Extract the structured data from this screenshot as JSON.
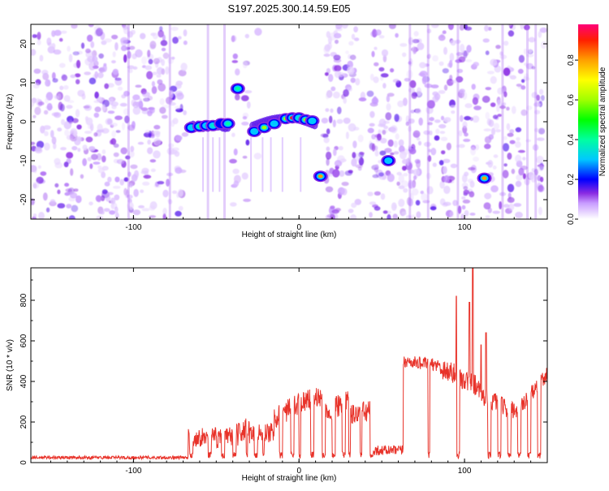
{
  "title": "S197.2025.300.14.59.E05",
  "colors": {
    "line": "#e8332a",
    "spectro_base": "#7a18ff",
    "axis": "#000000"
  },
  "chart_data": [
    {
      "type": "heatmap",
      "name": "spectrogram",
      "xlabel": "Height of straight line (km)",
      "ylabel": "Frequency (Hz)",
      "xlim": [
        -162,
        150
      ],
      "ylim": [
        -25,
        25
      ],
      "xticks": [
        -100,
        0,
        100
      ],
      "yticks": [
        -20,
        -10,
        0,
        10,
        20
      ],
      "blank_x_ranges": [
        [
          -68,
          -40
        ],
        [
          -37,
          -33
        ],
        [
          -30,
          -26
        ],
        [
          -24,
          15
        ],
        [
          39,
          43
        ],
        [
          84,
          86
        ],
        [
          108,
          113
        ],
        [
          130,
          132
        ],
        [
          148,
          150
        ]
      ],
      "streak_x": [
        -103,
        -78,
        -55,
        -45,
        67,
        78,
        96,
        123,
        138,
        143
      ],
      "hotspots": [
        {
          "x": -65,
          "y": -1.5,
          "v": 0.3
        },
        {
          "x": -60,
          "y": -1.2,
          "v": 0.4
        },
        {
          "x": -56,
          "y": -1.0,
          "v": 0.3
        },
        {
          "x": -52,
          "y": -1.0,
          "v": 0.35
        },
        {
          "x": -47,
          "y": -0.5,
          "v": 0.2
        },
        {
          "x": -43,
          "y": -0.5,
          "v": 0.4
        },
        {
          "x": -37,
          "y": 8.5,
          "v": 0.4
        },
        {
          "x": -27,
          "y": -2.5,
          "v": 0.3
        },
        {
          "x": -21,
          "y": -1.5,
          "v": 0.6
        },
        {
          "x": -15,
          "y": -0.5,
          "v": 0.3
        },
        {
          "x": -8,
          "y": 0.8,
          "v": 0.6
        },
        {
          "x": -4,
          "y": 1.0,
          "v": 0.9
        },
        {
          "x": 0,
          "y": 1.0,
          "v": 0.35
        },
        {
          "x": 4,
          "y": 0.5,
          "v": 0.6
        },
        {
          "x": 8,
          "y": 0.2,
          "v": 0.3
        },
        {
          "x": 13,
          "y": -14,
          "v": 0.8
        },
        {
          "x": 54,
          "y": -10,
          "v": 0.3
        },
        {
          "x": 112,
          "y": -14.5,
          "v": 0.8
        }
      ]
    },
    {
      "type": "colorbar",
      "label": "Normalized spectral amplitude",
      "range": [
        0,
        0.98
      ],
      "ticks": [
        "0.0",
        "0.2",
        "0.4",
        "0.6",
        "0.8"
      ],
      "tick_values": [
        0,
        0.2,
        0.4,
        0.6,
        0.8
      ],
      "stops": [
        {
          "v": 0.0,
          "c": "#ffffff"
        },
        {
          "v": 0.08,
          "c": "#c89cff"
        },
        {
          "v": 0.13,
          "c": "#8a2be2"
        },
        {
          "v": 0.2,
          "c": "#0000ff"
        },
        {
          "v": 0.3,
          "c": "#00c8ff"
        },
        {
          "v": 0.4,
          "c": "#00ffa0"
        },
        {
          "v": 0.5,
          "c": "#00ff00"
        },
        {
          "v": 0.6,
          "c": "#a0ff00"
        },
        {
          "v": 0.7,
          "c": "#ffff00"
        },
        {
          "v": 0.8,
          "c": "#ffa000"
        },
        {
          "v": 0.9,
          "c": "#ff2000"
        },
        {
          "v": 0.98,
          "c": "#ff0078"
        }
      ]
    },
    {
      "type": "line",
      "name": "snr",
      "xlabel": "Height of straight line (km)",
      "ylabel": "SNR (10 * v/v)",
      "xlim": [
        -162,
        150
      ],
      "ylim": [
        0,
        960
      ],
      "xticks": [
        -100,
        0,
        100
      ],
      "yticks": [
        0,
        200,
        400,
        600,
        800
      ],
      "series": [
        {
          "name": "SNR",
          "segments": [
            {
              "x": [
                -162,
                -67
              ],
              "y": [
                25,
                25
              ],
              "noise": 8
            },
            {
              "x": [
                -67,
                -50
              ],
              "y": [
                120,
                130
              ],
              "noise": 45
            },
            {
              "x": [
                -50,
                -40
              ],
              "y": [
                110,
                130
              ],
              "noise": 50
            },
            {
              "x": [
                -40,
                -30
              ],
              "y": [
                120,
                180
              ],
              "noise": 55
            },
            {
              "x": [
                -30,
                -15
              ],
              "y": [
                140,
                150
              ],
              "noise": 50
            },
            {
              "x": [
                -15,
                0
              ],
              "y": [
                220,
                290
              ],
              "noise": 55
            },
            {
              "x": [
                0,
                15
              ],
              "y": [
                300,
                330
              ],
              "noise": 55
            },
            {
              "x": [
                15,
                30
              ],
              "y": [
                250,
                300
              ],
              "noise": 55
            },
            {
              "x": [
                30,
                45
              ],
              "y": [
                230,
                260
              ],
              "noise": 55
            },
            {
              "x": [
                45,
                63
              ],
              "y": [
                60,
                60
              ],
              "noise": 25
            },
            {
              "x": [
                63,
                85
              ],
              "y": [
                500,
                480
              ],
              "noise": 30
            },
            {
              "x": [
                85,
                110
              ],
              "y": [
                470,
                370
              ],
              "noise": 55
            },
            {
              "x": [
                110,
                130
              ],
              "y": [
                330,
                250
              ],
              "noise": 45
            },
            {
              "x": [
                130,
                150
              ],
              "y": [
                230,
                440
              ],
              "noise": 40
            }
          ],
          "dips": [
            [
              -66,
              -64
            ],
            [
              -55,
              -53
            ],
            [
              -47,
              -45
            ],
            [
              -40,
              -38
            ],
            [
              -32,
              -31
            ],
            [
              -27,
              -25
            ],
            [
              -22,
              -21
            ],
            [
              -12,
              -10
            ],
            [
              -5,
              -3
            ],
            [
              0,
              1
            ],
            [
              7,
              9
            ],
            [
              14,
              16
            ],
            [
              20,
              22
            ],
            [
              26,
              28
            ],
            [
              30,
              31
            ],
            [
              37,
              38
            ],
            [
              43,
              45
            ],
            [
              78,
              79
            ],
            [
              95,
              97
            ],
            [
              114,
              116
            ],
            [
              120,
              122
            ],
            [
              126,
              128
            ],
            [
              132,
              134
            ],
            [
              138,
              140
            ],
            [
              144,
              146
            ]
          ],
          "spikes": [
            {
              "x": 95,
              "y": 820
            },
            {
              "x": 103,
              "y": 790
            },
            {
              "x": 105,
              "y": 960
            },
            {
              "x": 113,
              "y": 640
            },
            {
              "x": 110,
              "y": 580
            }
          ]
        }
      ]
    }
  ]
}
